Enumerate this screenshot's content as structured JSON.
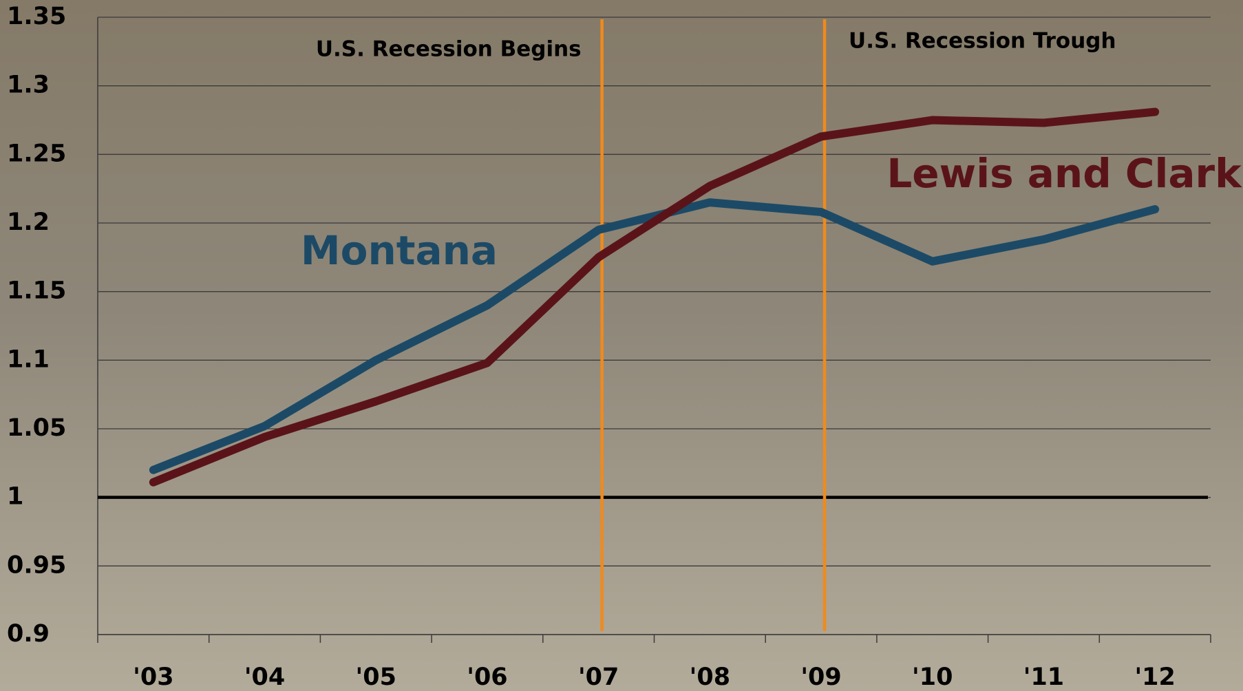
{
  "chart_data": {
    "type": "line",
    "categories": [
      "'03",
      "'04",
      "'05",
      "'06",
      "'07",
      "'08",
      "'09",
      "'10",
      "'11",
      "'12"
    ],
    "series": [
      {
        "name": "Montana",
        "color": "#1c4a66",
        "values": [
          1.02,
          1.052,
          1.1,
          1.14,
          1.195,
          1.215,
          1.208,
          1.172,
          1.188,
          1.21
        ]
      },
      {
        "name": "Lewis and Clark",
        "color": "#5a1419",
        "values": [
          1.011,
          1.044,
          1.07,
          1.098,
          1.175,
          1.227,
          1.263,
          1.275,
          1.273,
          1.281
        ]
      }
    ],
    "ylim": [
      0.9,
      1.35
    ],
    "yticks": [
      0.9,
      0.95,
      1,
      1.05,
      1.1,
      1.15,
      1.2,
      1.25,
      1.3,
      1.35
    ],
    "grid": true,
    "reference_line": 1,
    "annotations": [
      {
        "text": "U.S. Recession Begins",
        "category": "'07",
        "color": "#f08a1c",
        "side": "left"
      },
      {
        "text": "U.S. Recession Trough",
        "category": "'09",
        "color": "#f08a1c",
        "side": "right"
      }
    ]
  }
}
